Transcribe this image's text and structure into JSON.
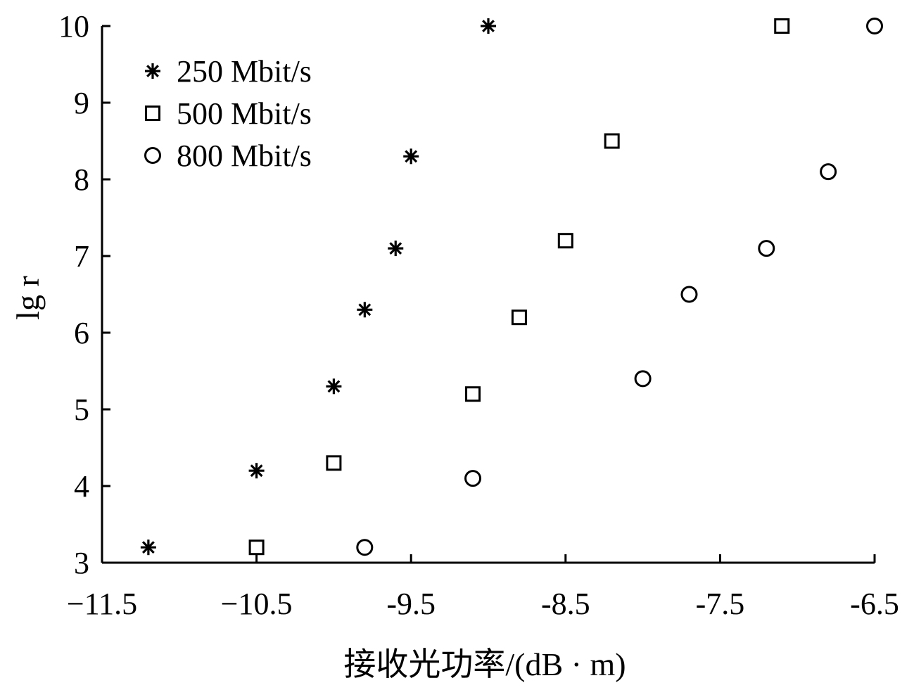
{
  "chart_data": {
    "type": "scatter",
    "title": "",
    "xlabel": "接收光功率/(dB · m)",
    "ylabel": "lg r",
    "xlim": [
      -11.5,
      -6.5
    ],
    "ylim": [
      3,
      10
    ],
    "xticks": [
      -11.5,
      -10.5,
      -9.5,
      -8.5,
      -7.5,
      -6.5
    ],
    "xtick_labels": [
      "−11.5",
      "−10.5",
      "-9.5",
      "-8.5",
      "-7.5",
      "-6.5"
    ],
    "yticks": [
      3,
      4,
      5,
      6,
      7,
      8,
      9,
      10
    ],
    "ytick_labels": [
      "3",
      "4",
      "5",
      "6",
      "7",
      "8",
      "9",
      "10"
    ],
    "grid": false,
    "legend_position": "top-left",
    "series": [
      {
        "name": "250 Mbit/s",
        "marker": "star",
        "points": [
          [
            -11.2,
            3.2
          ],
          [
            -10.5,
            4.2
          ],
          [
            -10.0,
            5.3
          ],
          [
            -9.8,
            6.3
          ],
          [
            -9.6,
            7.1
          ],
          [
            -9.5,
            8.3
          ],
          [
            -9.0,
            10.0
          ]
        ]
      },
      {
        "name": "500 Mbit/s",
        "marker": "square",
        "points": [
          [
            -10.5,
            3.2
          ],
          [
            -10.0,
            4.3
          ],
          [
            -9.1,
            5.2
          ],
          [
            -8.8,
            6.2
          ],
          [
            -8.5,
            7.2
          ],
          [
            -8.2,
            8.5
          ],
          [
            -7.1,
            10.0
          ]
        ]
      },
      {
        "name": "800 Mbit/s",
        "marker": "circle",
        "points": [
          [
            -9.8,
            3.2
          ],
          [
            -9.1,
            4.1
          ],
          [
            -8.0,
            5.4
          ],
          [
            -7.7,
            6.5
          ],
          [
            -7.2,
            7.1
          ],
          [
            -6.8,
            8.1
          ],
          [
            -6.5,
            10.0
          ]
        ]
      }
    ]
  }
}
